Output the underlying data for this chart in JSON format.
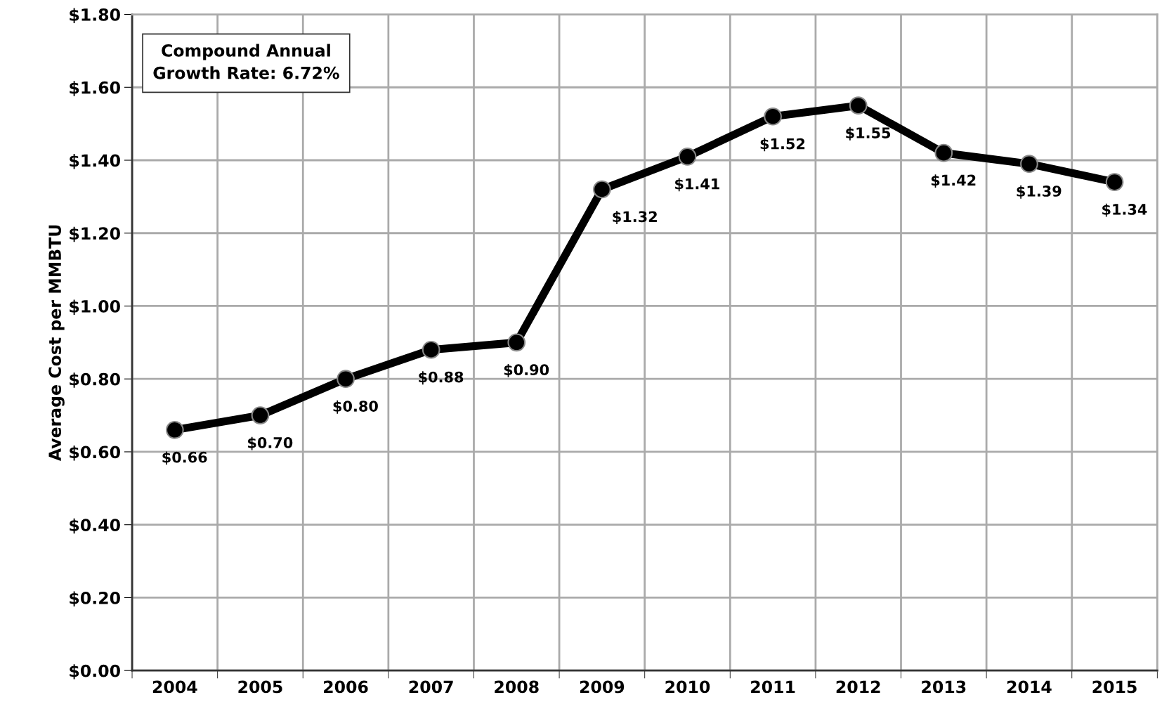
{
  "chart_data": {
    "type": "line",
    "ylabel": "Average Cost per MMBTU",
    "categories": [
      "2004",
      "2005",
      "2006",
      "2007",
      "2008",
      "2009",
      "2010",
      "2011",
      "2012",
      "2013",
      "2014",
      "2015"
    ],
    "series": [
      {
        "color": "#000000",
        "values": [
          0.66,
          0.7,
          0.8,
          0.88,
          0.9,
          1.32,
          1.41,
          1.52,
          1.55,
          1.42,
          1.39,
          1.34
        ],
        "value_labels": [
          "$0.66",
          "$0.70",
          "$0.80",
          "$0.88",
          "$0.90",
          "$1.32",
          "$1.41",
          "$1.52",
          "$1.55",
          "$1.42",
          "$1.39",
          "$1.34"
        ]
      }
    ],
    "ylim": [
      0,
      1.8
    ],
    "yticks": [
      {
        "value": 0,
        "label": "$0.00"
      },
      {
        "value": 0.2,
        "label": "$0.20"
      },
      {
        "value": 0.4,
        "label": "$0.40"
      },
      {
        "value": 0.6,
        "label": "$0.60"
      },
      {
        "value": 0.8,
        "label": "$0.80"
      },
      {
        "value": 1.0,
        "label": "$1.00"
      },
      {
        "value": 1.2,
        "label": "$1.20"
      },
      {
        "value": 1.4,
        "label": "$1.40"
      },
      {
        "value": 1.6,
        "label": "$1.60"
      },
      {
        "value": 1.8,
        "label": "$1.80"
      }
    ],
    "annotations": [
      "Compound Annual\nGrowth Rate: 6.72%"
    ],
    "grid": true,
    "legend": false,
    "marker": "circle",
    "line_style": "solid"
  }
}
